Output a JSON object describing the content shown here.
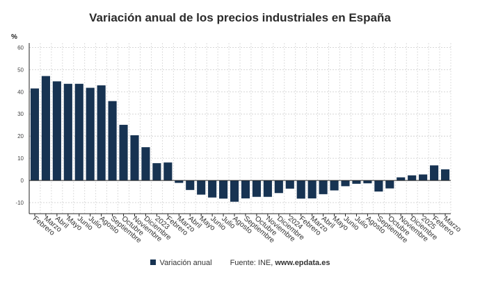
{
  "chart_data": {
    "type": "bar",
    "title": "Variación anual de los precios industriales en España",
    "ylabel": "%",
    "ylim": [
      -15,
      62
    ],
    "yticks": [
      -10,
      0,
      10,
      20,
      30,
      40,
      50,
      60
    ],
    "grid": true,
    "legend_position": "bottom",
    "bar_color": "#173352",
    "categories": [
      "Febrero",
      "Marzo",
      "Abril",
      "Mayo",
      "Junio",
      "Julio",
      "Agosto",
      "Septiembre",
      "Octubre",
      "Noviembre",
      "Diciembre",
      "2023",
      "Febrero",
      "Marzo",
      "Abril",
      "Mayo",
      "Junio",
      "Julio",
      "Agosto",
      "Septiembre",
      "Octubre",
      "Noviembre",
      "Diciembre",
      "2024",
      "Febrero",
      "Marzo",
      "Abril",
      "Mayo",
      "Junio",
      "Julio",
      "Agosto",
      "Septiembre",
      "Octubre",
      "Noviembre",
      "Diciembre",
      "2025",
      "Febrero",
      "Marzo"
    ],
    "series": [
      {
        "name": "Variación anual",
        "values": [
          41.5,
          47.1,
          44.7,
          43.6,
          43.6,
          41.8,
          42.9,
          35.8,
          25.1,
          20.4,
          15.0,
          7.8,
          8.1,
          -1.1,
          -4.3,
          -6.4,
          -7.7,
          -8.2,
          -9.6,
          -8.1,
          -7.4,
          -7.4,
          -5.7,
          -3.7,
          -8.2,
          -8.1,
          -6.2,
          -4.5,
          -2.6,
          -1.5,
          -1.3,
          -5.0,
          -3.6,
          1.4,
          2.3,
          2.7,
          6.8,
          5.0
        ]
      }
    ]
  },
  "legend": {
    "series_label": "Variación anual",
    "source_label": "Fuente: INE, ",
    "source_site": "www.epdata.es"
  }
}
